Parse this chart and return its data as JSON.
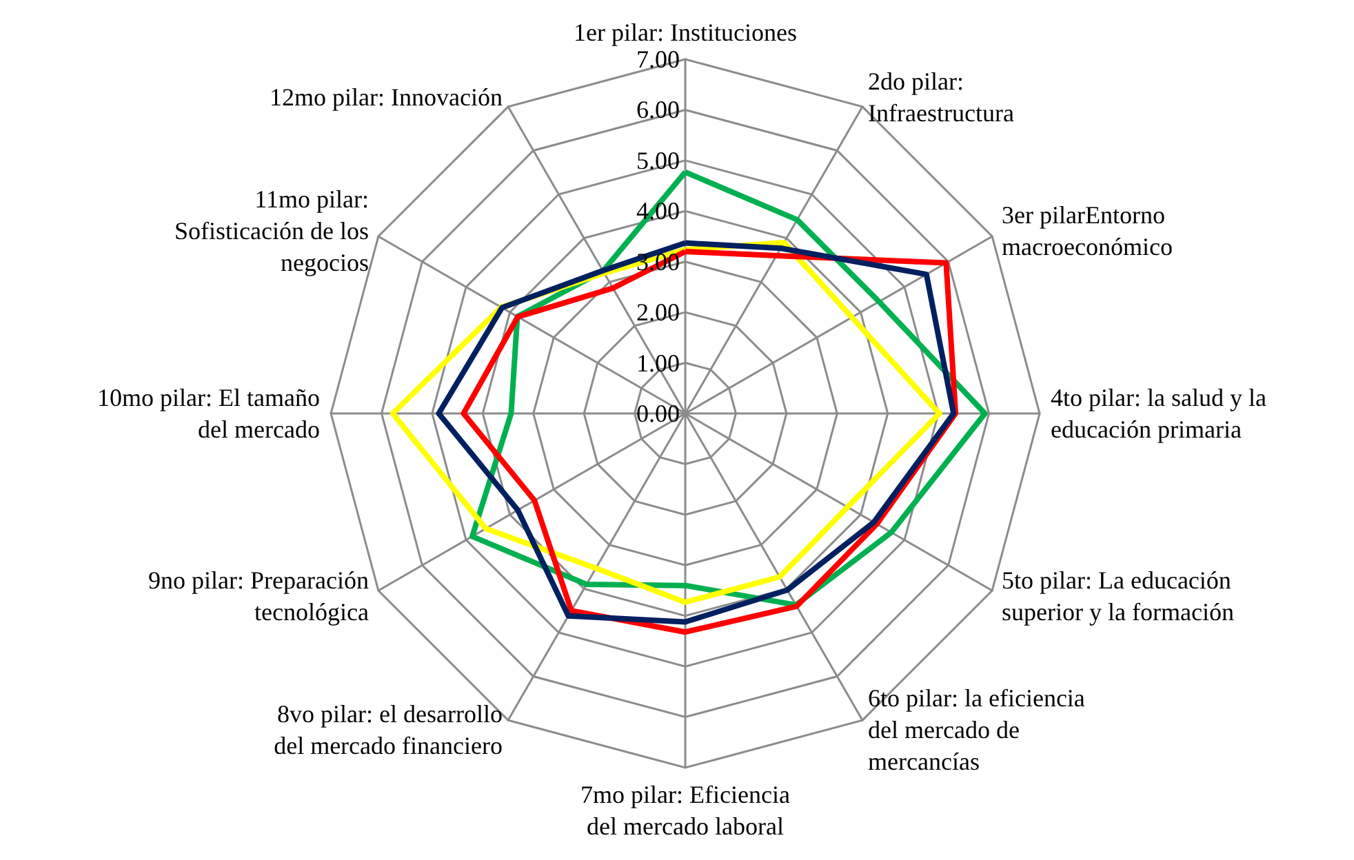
{
  "chart_data": {
    "type": "radar",
    "categories": [
      "1er pilar: Instituciones",
      "2do pilar:\nInfraestructura",
      "3er pilarEntorno\nmacroeconómico",
      "4to pilar: la salud y la\neducación primaria",
      "5to pilar: La educación\nsuperior y la formación",
      "6to pilar: la eficiencia\ndel mercado de\nmercancías",
      "7mo pilar: Eficiencia\ndel mercado laboral",
      "8vo pilar: el desarrollo\ndel mercado financiero",
      "9no pilar: Preparación\ntecnológica",
      "10mo pilar: El tamaño\ndel mercado",
      "11mo pilar:\nSofisticación de los\nnegocios",
      "12mo pilar: Innovación"
    ],
    "series": [
      {
        "color": "#00b050",
        "values": [
          4.77,
          4.42,
          4.42,
          5.92,
          4.7,
          4.37,
          3.4,
          3.9,
          4.86,
          3.44,
          3.83,
          3.25
        ]
      },
      {
        "color": "#ffff00",
        "values": [
          3.24,
          3.9,
          3.8,
          5.02,
          3.7,
          3.73,
          3.73,
          3.53,
          4.55,
          5.78,
          4.2,
          3.2
        ]
      },
      {
        "color": "#ff0000",
        "values": [
          3.2,
          3.6,
          5.95,
          5.34,
          4.37,
          4.4,
          4.32,
          4.5,
          3.44,
          4.38,
          3.82,
          2.86
        ]
      },
      {
        "color": "#002060",
        "values": [
          3.37,
          3.77,
          5.5,
          5.3,
          4.3,
          4.03,
          4.12,
          4.62,
          3.82,
          4.87,
          4.18,
          3.26
        ]
      }
    ],
    "ylim": [
      0,
      7
    ],
    "yticks": [
      {
        "value": 0,
        "label": "0.00"
      },
      {
        "value": 1,
        "label": "1.00"
      },
      {
        "value": 2,
        "label": "2.00"
      },
      {
        "value": 3,
        "label": "3.00"
      },
      {
        "value": 4,
        "label": "4.00"
      },
      {
        "value": 5,
        "label": "5.00"
      },
      {
        "value": 6,
        "label": "6.00"
      },
      {
        "value": 7,
        "label": "7.00"
      }
    ],
    "marker": "none",
    "line_style": "solid",
    "grid": true
  }
}
